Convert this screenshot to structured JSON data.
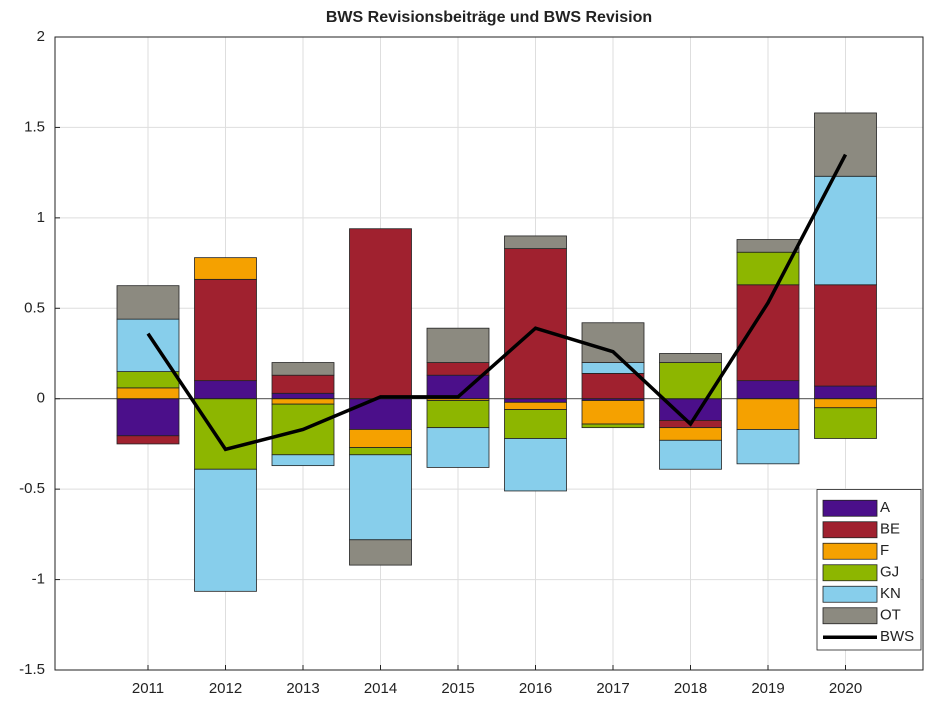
{
  "chart_data": {
    "type": "bar",
    "stacked": true,
    "title": "BWS Revisionsbeiträge und BWS Revision",
    "x": [
      2011,
      2012,
      2013,
      2014,
      2015,
      2016,
      2017,
      2018,
      2019,
      2020
    ],
    "xlim": [
      2009.8,
      2021
    ],
    "xticks": [
      2011,
      2012,
      2013,
      2014,
      2015,
      2016,
      2017,
      2018,
      2019,
      2020
    ],
    "ylim": [
      -1.5,
      2
    ],
    "yticks": [
      -1.5,
      -1,
      -0.5,
      0,
      0.5,
      1,
      1.5,
      2
    ],
    "grid": true,
    "legend": "lower right",
    "series": [
      {
        "name": "A",
        "color": "#4b0f8a",
        "values": [
          -0.205,
          0.1,
          0.03,
          -0.17,
          0.13,
          -0.02,
          -0.01,
          -0.12,
          0.1,
          0.07
        ]
      },
      {
        "name": "BE",
        "color": "#a0212f",
        "values": [
          -0.045,
          0.56,
          0.1,
          0.94,
          0.07,
          0.83,
          0.14,
          -0.04,
          0.53,
          0.56
        ]
      },
      {
        "name": "F",
        "color": "#f5a100",
        "values": [
          0.06,
          0.12,
          -0.03,
          -0.1,
          -0.01,
          -0.04,
          -0.13,
          -0.07,
          -0.17,
          -0.05
        ]
      },
      {
        "name": "GJ",
        "color": "#8db600",
        "values": [
          0.09,
          -0.39,
          -0.28,
          -0.04,
          -0.15,
          -0.16,
          -0.02,
          0.2,
          0.18,
          -0.17
        ]
      },
      {
        "name": "KN",
        "color": "#87ceeb",
        "values": [
          0.29,
          -0.675,
          -0.06,
          -0.47,
          -0.22,
          -0.29,
          0.06,
          -0.16,
          -0.19,
          0.6
        ]
      },
      {
        "name": "OT",
        "color": "#8c8a80",
        "values": [
          0.185,
          0,
          0.07,
          -0.14,
          0.19,
          0.07,
          0.22,
          0.05,
          0.07,
          0.35
        ]
      },
      {
        "name": "BWS",
        "type": "line",
        "color": "#000000",
        "values": [
          0.36,
          -0.28,
          -0.17,
          0.01,
          0.01,
          0.39,
          0.26,
          -0.14,
          0.53,
          1.35
        ]
      }
    ]
  }
}
